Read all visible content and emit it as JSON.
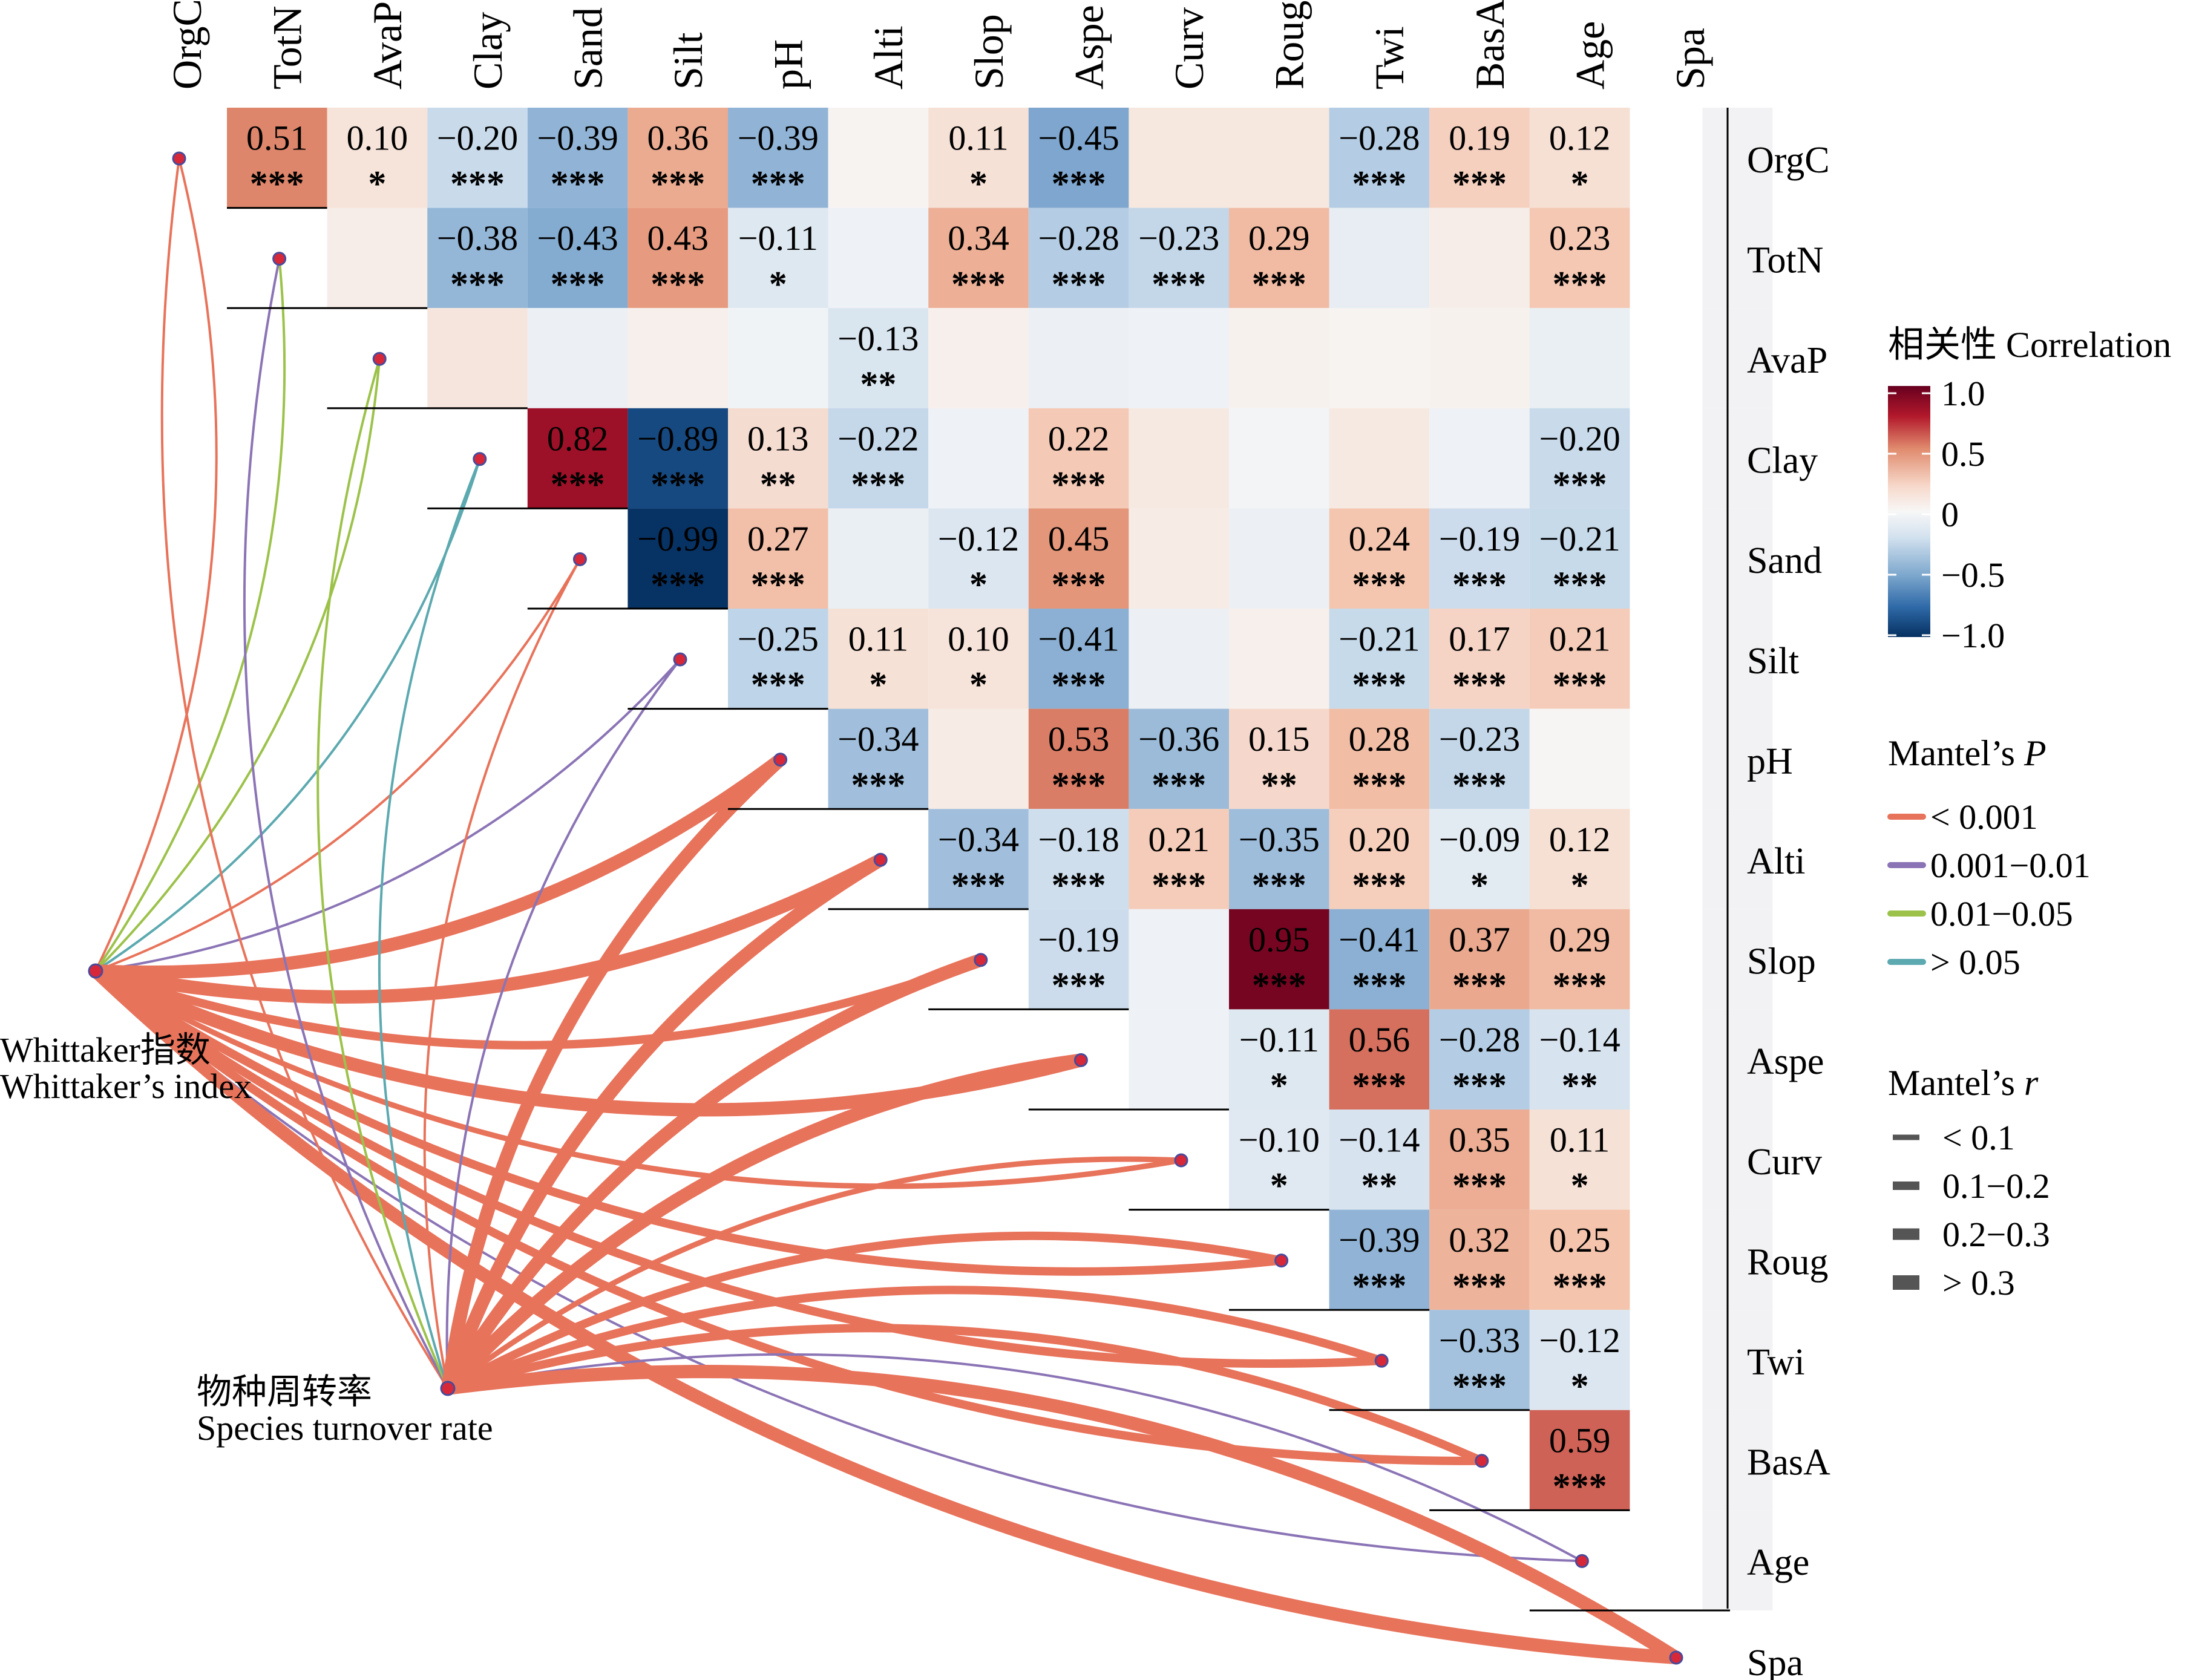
{
  "chart_data": {
    "type": "heatmap",
    "variables": [
      "OrgC",
      "TotN",
      "AvaP",
      "Clay",
      "Sand",
      "Silt",
      "pH",
      "Alti",
      "Slop",
      "Aspe",
      "Curv",
      "Roug",
      "Twi",
      "BasA",
      "Age",
      "Spa"
    ],
    "correlations": [
      {
        "row": "OrgC",
        "col": "TotN",
        "r": 0.51,
        "sig": "***",
        "label": true
      },
      {
        "row": "OrgC",
        "col": "AvaP",
        "r": 0.1,
        "sig": "*",
        "label": true
      },
      {
        "row": "OrgC",
        "col": "Clay",
        "r": -0.2,
        "sig": "***",
        "label": true
      },
      {
        "row": "OrgC",
        "col": "Sand",
        "r": -0.39,
        "sig": "***",
        "label": true
      },
      {
        "row": "OrgC",
        "col": "Silt",
        "r": 0.36,
        "sig": "***",
        "label": true
      },
      {
        "row": "OrgC",
        "col": "pH",
        "r": -0.39,
        "sig": "***",
        "label": true
      },
      {
        "row": "OrgC",
        "col": "Alti",
        "r": 0.02,
        "sig": "",
        "label": false
      },
      {
        "row": "OrgC",
        "col": "Slop",
        "r": 0.11,
        "sig": "*",
        "label": true
      },
      {
        "row": "OrgC",
        "col": "Aspe",
        "r": -0.45,
        "sig": "***",
        "label": true
      },
      {
        "row": "OrgC",
        "col": "Curv",
        "r": 0.08,
        "sig": "",
        "label": false
      },
      {
        "row": "OrgC",
        "col": "Roug",
        "r": 0.08,
        "sig": "",
        "label": false
      },
      {
        "row": "OrgC",
        "col": "Twi",
        "r": -0.28,
        "sig": "***",
        "label": true
      },
      {
        "row": "OrgC",
        "col": "BasA",
        "r": 0.19,
        "sig": "***",
        "label": true
      },
      {
        "row": "OrgC",
        "col": "Age",
        "r": 0.12,
        "sig": "*",
        "label": true
      },
      {
        "row": "TotN",
        "col": "AvaP",
        "r": 0.05,
        "sig": "",
        "label": false
      },
      {
        "row": "TotN",
        "col": "Clay",
        "r": -0.38,
        "sig": "***",
        "label": true
      },
      {
        "row": "TotN",
        "col": "Sand",
        "r": -0.43,
        "sig": "***",
        "label": true
      },
      {
        "row": "TotN",
        "col": "Silt",
        "r": 0.43,
        "sig": "***",
        "label": true
      },
      {
        "row": "TotN",
        "col": "pH",
        "r": -0.11,
        "sig": "*",
        "label": true
      },
      {
        "row": "TotN",
        "col": "Alti",
        "r": -0.04,
        "sig": "",
        "label": false
      },
      {
        "row": "TotN",
        "col": "Slop",
        "r": 0.34,
        "sig": "***",
        "label": true
      },
      {
        "row": "TotN",
        "col": "Aspe",
        "r": -0.28,
        "sig": "***",
        "label": true
      },
      {
        "row": "TotN",
        "col": "Curv",
        "r": -0.23,
        "sig": "***",
        "label": true
      },
      {
        "row": "TotN",
        "col": "Roug",
        "r": 0.29,
        "sig": "***",
        "label": true
      },
      {
        "row": "TotN",
        "col": "Twi",
        "r": -0.07,
        "sig": "",
        "label": false
      },
      {
        "row": "TotN",
        "col": "BasA",
        "r": 0.05,
        "sig": "",
        "label": false
      },
      {
        "row": "TotN",
        "col": "Age",
        "r": 0.23,
        "sig": "***",
        "label": true
      },
      {
        "row": "AvaP",
        "col": "Clay",
        "r": 0.09,
        "sig": "",
        "label": false
      },
      {
        "row": "AvaP",
        "col": "Sand",
        "r": -0.05,
        "sig": "",
        "label": false
      },
      {
        "row": "AvaP",
        "col": "Silt",
        "r": 0.04,
        "sig": "",
        "label": false
      },
      {
        "row": "AvaP",
        "col": "pH",
        "r": -0.03,
        "sig": "",
        "label": false
      },
      {
        "row": "AvaP",
        "col": "Alti",
        "r": -0.13,
        "sig": "**",
        "label": true
      },
      {
        "row": "AvaP",
        "col": "Slop",
        "r": 0.04,
        "sig": "",
        "label": false
      },
      {
        "row": "AvaP",
        "col": "Aspe",
        "r": -0.05,
        "sig": "",
        "label": false
      },
      {
        "row": "AvaP",
        "col": "Curv",
        "r": -0.04,
        "sig": "",
        "label": false
      },
      {
        "row": "AvaP",
        "col": "Roug",
        "r": 0.03,
        "sig": "",
        "label": false
      },
      {
        "row": "AvaP",
        "col": "Twi",
        "r": 0.02,
        "sig": "",
        "label": false
      },
      {
        "row": "AvaP",
        "col": "BasA",
        "r": 0.03,
        "sig": "",
        "label": false
      },
      {
        "row": "AvaP",
        "col": "Age",
        "r": -0.06,
        "sig": "",
        "label": false
      },
      {
        "row": "Clay",
        "col": "Sand",
        "r": 0.82,
        "sig": "***",
        "label": true
      },
      {
        "row": "Clay",
        "col": "Silt",
        "r": -0.89,
        "sig": "***",
        "label": true
      },
      {
        "row": "Clay",
        "col": "pH",
        "r": 0.13,
        "sig": "**",
        "label": true
      },
      {
        "row": "Clay",
        "col": "Alti",
        "r": -0.22,
        "sig": "***",
        "label": true
      },
      {
        "row": "Clay",
        "col": "Slop",
        "r": -0.04,
        "sig": "",
        "label": false
      },
      {
        "row": "Clay",
        "col": "Aspe",
        "r": 0.22,
        "sig": "***",
        "label": true
      },
      {
        "row": "Clay",
        "col": "Curv",
        "r": 0.07,
        "sig": "",
        "label": false
      },
      {
        "row": "Clay",
        "col": "Roug",
        "r": -0.02,
        "sig": "",
        "label": false
      },
      {
        "row": "Clay",
        "col": "Twi",
        "r": 0.07,
        "sig": "",
        "label": false
      },
      {
        "row": "Clay",
        "col": "BasA",
        "r": -0.04,
        "sig": "",
        "label": false
      },
      {
        "row": "Clay",
        "col": "Age",
        "r": -0.2,
        "sig": "***",
        "label": true
      },
      {
        "row": "Sand",
        "col": "Silt",
        "r": -0.99,
        "sig": "***",
        "label": true
      },
      {
        "row": "Sand",
        "col": "pH",
        "r": 0.27,
        "sig": "***",
        "label": true
      },
      {
        "row": "Sand",
        "col": "Alti",
        "r": -0.06,
        "sig": "",
        "label": false
      },
      {
        "row": "Sand",
        "col": "Slop",
        "r": -0.12,
        "sig": "*",
        "label": true
      },
      {
        "row": "Sand",
        "col": "Aspe",
        "r": 0.45,
        "sig": "***",
        "label": true
      },
      {
        "row": "Sand",
        "col": "Curv",
        "r": 0.06,
        "sig": "",
        "label": false
      },
      {
        "row": "Sand",
        "col": "Roug",
        "r": -0.05,
        "sig": "",
        "label": false
      },
      {
        "row": "Sand",
        "col": "Twi",
        "r": 0.24,
        "sig": "***",
        "label": true
      },
      {
        "row": "Sand",
        "col": "BasA",
        "r": -0.19,
        "sig": "***",
        "label": true
      },
      {
        "row": "Sand",
        "col": "Age",
        "r": -0.21,
        "sig": "***",
        "label": true
      },
      {
        "row": "Silt",
        "col": "pH",
        "r": -0.25,
        "sig": "***",
        "label": true
      },
      {
        "row": "Silt",
        "col": "Alti",
        "r": 0.11,
        "sig": "*",
        "label": true
      },
      {
        "row": "Silt",
        "col": "Slop",
        "r": 0.1,
        "sig": "*",
        "label": true
      },
      {
        "row": "Silt",
        "col": "Aspe",
        "r": -0.41,
        "sig": "***",
        "label": true
      },
      {
        "row": "Silt",
        "col": "Curv",
        "r": -0.05,
        "sig": "",
        "label": false
      },
      {
        "row": "Silt",
        "col": "Roug",
        "r": 0.04,
        "sig": "",
        "label": false
      },
      {
        "row": "Silt",
        "col": "Twi",
        "r": -0.21,
        "sig": "***",
        "label": true
      },
      {
        "row": "Silt",
        "col": "BasA",
        "r": 0.17,
        "sig": "***",
        "label": true
      },
      {
        "row": "Silt",
        "col": "Age",
        "r": 0.21,
        "sig": "***",
        "label": true
      },
      {
        "row": "pH",
        "col": "Alti",
        "r": -0.34,
        "sig": "***",
        "label": true
      },
      {
        "row": "pH",
        "col": "Slop",
        "r": 0.06,
        "sig": "",
        "label": false
      },
      {
        "row": "pH",
        "col": "Aspe",
        "r": 0.53,
        "sig": "***",
        "label": true
      },
      {
        "row": "pH",
        "col": "Curv",
        "r": -0.36,
        "sig": "***",
        "label": true
      },
      {
        "row": "pH",
        "col": "Roug",
        "r": 0.15,
        "sig": "**",
        "label": true
      },
      {
        "row": "pH",
        "col": "Twi",
        "r": 0.28,
        "sig": "***",
        "label": true
      },
      {
        "row": "pH",
        "col": "BasA",
        "r": -0.23,
        "sig": "***",
        "label": true
      },
      {
        "row": "pH",
        "col": "Age",
        "r": 0.01,
        "sig": "",
        "label": false
      },
      {
        "row": "Alti",
        "col": "Slop",
        "r": -0.34,
        "sig": "***",
        "label": true
      },
      {
        "row": "Alti",
        "col": "Aspe",
        "r": -0.18,
        "sig": "***",
        "label": true
      },
      {
        "row": "Alti",
        "col": "Curv",
        "r": 0.21,
        "sig": "***",
        "label": true
      },
      {
        "row": "Alti",
        "col": "Roug",
        "r": -0.35,
        "sig": "***",
        "label": true
      },
      {
        "row": "Alti",
        "col": "Twi",
        "r": 0.2,
        "sig": "***",
        "label": true
      },
      {
        "row": "Alti",
        "col": "BasA",
        "r": -0.09,
        "sig": "*",
        "label": true
      },
      {
        "row": "Alti",
        "col": "Age",
        "r": 0.12,
        "sig": "*",
        "label": true
      },
      {
        "row": "Slop",
        "col": "Aspe",
        "r": -0.19,
        "sig": "***",
        "label": true
      },
      {
        "row": "Slop",
        "col": "Curv",
        "r": -0.04,
        "sig": "",
        "label": false
      },
      {
        "row": "Slop",
        "col": "Roug",
        "r": 0.95,
        "sig": "***",
        "label": true
      },
      {
        "row": "Slop",
        "col": "Twi",
        "r": -0.41,
        "sig": "***",
        "label": true
      },
      {
        "row": "Slop",
        "col": "BasA",
        "r": 0.37,
        "sig": "***",
        "label": true
      },
      {
        "row": "Slop",
        "col": "Age",
        "r": 0.29,
        "sig": "***",
        "label": true
      },
      {
        "row": "Aspe",
        "col": "Curv",
        "r": -0.04,
        "sig": "",
        "label": false
      },
      {
        "row": "Aspe",
        "col": "Roug",
        "r": -0.11,
        "sig": "*",
        "label": true
      },
      {
        "row": "Aspe",
        "col": "Twi",
        "r": 0.56,
        "sig": "***",
        "label": true
      },
      {
        "row": "Aspe",
        "col": "BasA",
        "r": -0.28,
        "sig": "***",
        "label": true
      },
      {
        "row": "Aspe",
        "col": "Age",
        "r": -0.14,
        "sig": "**",
        "label": true
      },
      {
        "row": "Curv",
        "col": "Roug",
        "r": -0.1,
        "sig": "*",
        "label": true
      },
      {
        "row": "Curv",
        "col": "Twi",
        "r": -0.14,
        "sig": "**",
        "label": true
      },
      {
        "row": "Curv",
        "col": "BasA",
        "r": 0.35,
        "sig": "***",
        "label": true
      },
      {
        "row": "Curv",
        "col": "Age",
        "r": 0.11,
        "sig": "*",
        "label": true
      },
      {
        "row": "Roug",
        "col": "Twi",
        "r": -0.39,
        "sig": "***",
        "label": true
      },
      {
        "row": "Roug",
        "col": "BasA",
        "r": 0.32,
        "sig": "***",
        "label": true
      },
      {
        "row": "Roug",
        "col": "Age",
        "r": 0.25,
        "sig": "***",
        "label": true
      },
      {
        "row": "Twi",
        "col": "BasA",
        "r": -0.33,
        "sig": "***",
        "label": true
      },
      {
        "row": "Twi",
        "col": "Age",
        "r": -0.12,
        "sig": "*",
        "label": true
      },
      {
        "row": "BasA",
        "col": "Age",
        "r": 0.59,
        "sig": "***",
        "label": true
      }
    ],
    "spa_column_note": "Spa column cells rendered as near-zero (light grey)",
    "spa_values": [
      0,
      0,
      0,
      0,
      0,
      0,
      0,
      0,
      0,
      0,
      0,
      0,
      0,
      0,
      0
    ],
    "legend": {
      "correlation_title": "相关性 Correlation",
      "correlation_ticks": [
        "1.0",
        "0.5",
        "0",
        "−0.5",
        "−1.0"
      ],
      "correlation_tick_values": [
        1.0,
        0.5,
        0,
        -0.5,
        -1.0
      ],
      "mantel_p_title": "Mantel’s ",
      "mantel_p_symbol": "P",
      "mantel_p_items": [
        {
          "label": "< 0.001",
          "color": "#E8735B"
        },
        {
          "label": "0.001−0.01",
          "color": "#8B74B5"
        },
        {
          "label": "0.01−0.05",
          "color": "#9CC24A"
        },
        {
          "label": "> 0.05",
          "color": "#5CA9B0"
        }
      ],
      "mantel_r_title": "Mantel’s ",
      "mantel_r_symbol": "r",
      "mantel_r_items": [
        {
          "label": "< 0.1",
          "weight": 1
        },
        {
          "label": "0.1−0.2",
          "weight": 2
        },
        {
          "label": "0.2−0.3",
          "weight": 3
        },
        {
          "label": "> 0.3",
          "weight": 4
        }
      ]
    },
    "mantel_sources": [
      {
        "key": "whittaker",
        "label_cn": "Whittaker指数",
        "label_en": "Whittaker’s index"
      },
      {
        "key": "turnover",
        "label_cn": "物种周转率",
        "label_en": "Species turnover rate"
      }
    ],
    "mantel_links": [
      {
        "from": "whittaker",
        "to": "OrgC",
        "p": "< 0.001",
        "r": "< 0.1"
      },
      {
        "from": "whittaker",
        "to": "TotN",
        "p": "0.01−0.05",
        "r": "< 0.1"
      },
      {
        "from": "whittaker",
        "to": "AvaP",
        "p": "0.01−0.05",
        "r": "< 0.1"
      },
      {
        "from": "whittaker",
        "to": "Clay",
        "p": "> 0.05",
        "r": "< 0.1"
      },
      {
        "from": "whittaker",
        "to": "Sand",
        "p": "< 0.001",
        "r": "< 0.1"
      },
      {
        "from": "whittaker",
        "to": "Silt",
        "p": "0.001−0.01",
        "r": "< 0.1"
      },
      {
        "from": "whittaker",
        "to": "pH",
        "p": "< 0.001",
        "r": "> 0.3"
      },
      {
        "from": "whittaker",
        "to": "Alti",
        "p": "< 0.001",
        "r": "> 0.3"
      },
      {
        "from": "whittaker",
        "to": "Slop",
        "p": "< 0.001",
        "r": "0.2−0.3"
      },
      {
        "from": "whittaker",
        "to": "Aspe",
        "p": "< 0.001",
        "r": "> 0.3"
      },
      {
        "from": "whittaker",
        "to": "Curv",
        "p": "< 0.001",
        "r": "0.1−0.2"
      },
      {
        "from": "whittaker",
        "to": "Roug",
        "p": "< 0.001",
        "r": "0.2−0.3"
      },
      {
        "from": "whittaker",
        "to": "Twi",
        "p": "< 0.001",
        "r": "0.2−0.3"
      },
      {
        "from": "whittaker",
        "to": "BasA",
        "p": "< 0.001",
        "r": "0.2−0.3"
      },
      {
        "from": "whittaker",
        "to": "Age",
        "p": "0.001−0.01",
        "r": "< 0.1"
      },
      {
        "from": "whittaker",
        "to": "Spa",
        "p": "< 0.001",
        "r": "> 0.3"
      },
      {
        "from": "turnover",
        "to": "OrgC",
        "p": "< 0.001",
        "r": "< 0.1"
      },
      {
        "from": "turnover",
        "to": "TotN",
        "p": "0.001−0.01",
        "r": "< 0.1"
      },
      {
        "from": "turnover",
        "to": "AvaP",
        "p": "0.01−0.05",
        "r": "< 0.1"
      },
      {
        "from": "turnover",
        "to": "Clay",
        "p": "> 0.05",
        "r": "< 0.1"
      },
      {
        "from": "turnover",
        "to": "Sand",
        "p": "< 0.001",
        "r": "< 0.1"
      },
      {
        "from": "turnover",
        "to": "Silt",
        "p": "0.001−0.01",
        "r": "< 0.1"
      },
      {
        "from": "turnover",
        "to": "pH",
        "p": "< 0.001",
        "r": "> 0.3"
      },
      {
        "from": "turnover",
        "to": "Alti",
        "p": "< 0.001",
        "r": "> 0.3"
      },
      {
        "from": "turnover",
        "to": "Slop",
        "p": "< 0.001",
        "r": "> 0.3"
      },
      {
        "from": "turnover",
        "to": "Aspe",
        "p": "< 0.001",
        "r": "> 0.3"
      },
      {
        "from": "turnover",
        "to": "Curv",
        "p": "< 0.001",
        "r": "0.1−0.2"
      },
      {
        "from": "turnover",
        "to": "Roug",
        "p": "< 0.001",
        "r": "0.2−0.3"
      },
      {
        "from": "turnover",
        "to": "Twi",
        "p": "< 0.001",
        "r": "0.2−0.3"
      },
      {
        "from": "turnover",
        "to": "BasA",
        "p": "< 0.001",
        "r": "0.2−0.3"
      },
      {
        "from": "turnover",
        "to": "Age",
        "p": "0.001−0.01",
        "r": "< 0.1"
      },
      {
        "from": "turnover",
        "to": "Spa",
        "p": "< 0.001",
        "r": "> 0.3"
      }
    ]
  }
}
